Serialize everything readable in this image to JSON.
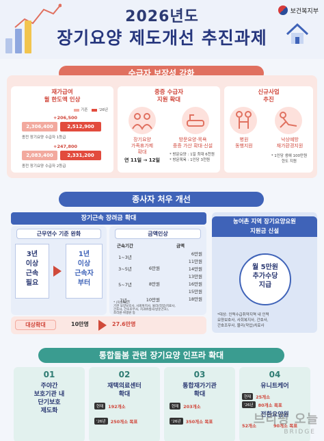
{
  "header": {
    "ministry": "보건복지부",
    "year_line": "2026년도",
    "title": "장기요양 제도개선 추진과제"
  },
  "section1": {
    "banner": "수급자 보장성 강화",
    "card1": {
      "title": "재가급여\n월 한도액 인상",
      "legend_old": "기존",
      "legend_new": "'26년",
      "grade1": {
        "increase": "+206,500",
        "old": "2,306,400",
        "new": "2,512,900",
        "caption": "종전 장기요양 수급자 1등급"
      },
      "grade2": {
        "increase": "+247,800",
        "old": "2,083,400",
        "new": "2,331,200",
        "caption": "종전 장기요양 수급자 2등급"
      }
    },
    "card2": {
      "title": "중증 수급자\n지원 확대",
      "item1_caption": "장기요양\n가족휴가제\n확대",
      "item1_period": "연 11일 → 12일",
      "item2_caption": "방문요양·목욕\n중증 가산 확대·신설",
      "notes": "* 방문요양 : 1일 최대 6천원\n* 방문목욕 : 1인당 3천원"
    },
    "card3": {
      "title": "신규사업\n추진",
      "item1_caption": "병원\n동행지원",
      "item2_caption": "낙상예방\n재가환경지원",
      "note": "* 1인당 생애 100만원\n한도 지원"
    }
  },
  "section2": {
    "banner": "종사자 처우 개선",
    "allowance_title": "장기근속 장려금 확대",
    "left_sub": "근무연수 기준 완화",
    "old_req": "3년\n이상\n근속\n필요",
    "new_req": "1년\n이상\n근속자\n부터",
    "target_label": "대상확대",
    "target_old": "10만명",
    "target_new": "27.6만명",
    "right_sub": "금액인상",
    "period_header": "근속기간",
    "amount_header": "금액",
    "periods": [
      "1~3년",
      "3~5년",
      "5~7년",
      "7년~"
    ],
    "old_amounts": [
      "",
      "6만원",
      "8만원",
      "10만원"
    ],
    "new_amounts": [
      "6만원",
      "11만원",
      "14만원",
      "13만원",
      "16만원",
      "15만원",
      "18만원"
    ],
    "footnote": "* (지원대상)\n 기관 요양보호사, 사회복지사, 물리(작업)치료사,\n 간호사, 간호조무사, 치과위생사(방문간호),\n 조리원·위생원 등",
    "rural_title": "농어촌 지역 장기요양요원\n지원금 신설",
    "rural_amount": "월 5만원\n추가수당\n지급",
    "rural_note": "*대상: 인력수급취약지역 내 인력\n 요양보호사, 사회복지사, 간호사,\n 간호조무사, 물리(작업)치료사"
  },
  "section3": {
    "banner": "통합돌봄 관련 장기요양 인프라 확대",
    "items": [
      {
        "num": "01",
        "label": "주야간\n보호기관 내\n단기보호\n제도화"
      },
      {
        "num": "02",
        "label": "재택의료센터\n확대",
        "now_tag": "현재",
        "now_val": "192개소",
        "target_tag": "'26년",
        "target_val": "250개소 목표"
      },
      {
        "num": "03",
        "label": "통합재가기관\n확대",
        "now_tag": "현재",
        "now_val": "203개소",
        "target_tag": "'26년",
        "target_val": "350개소 목표"
      },
      {
        "num": "04",
        "label": "유니트케어",
        "now_tag": "현재",
        "now_val": "25개소",
        "target_tag": "'26년",
        "target_val": "80개소 목표",
        "sub2": "전환요양원",
        "now2_val": "52개소",
        "target2_val": "90개소 목표"
      }
    ]
  },
  "watermark": {
    "ko": "브리핑 오늘",
    "en": "BRIDGE"
  }
}
